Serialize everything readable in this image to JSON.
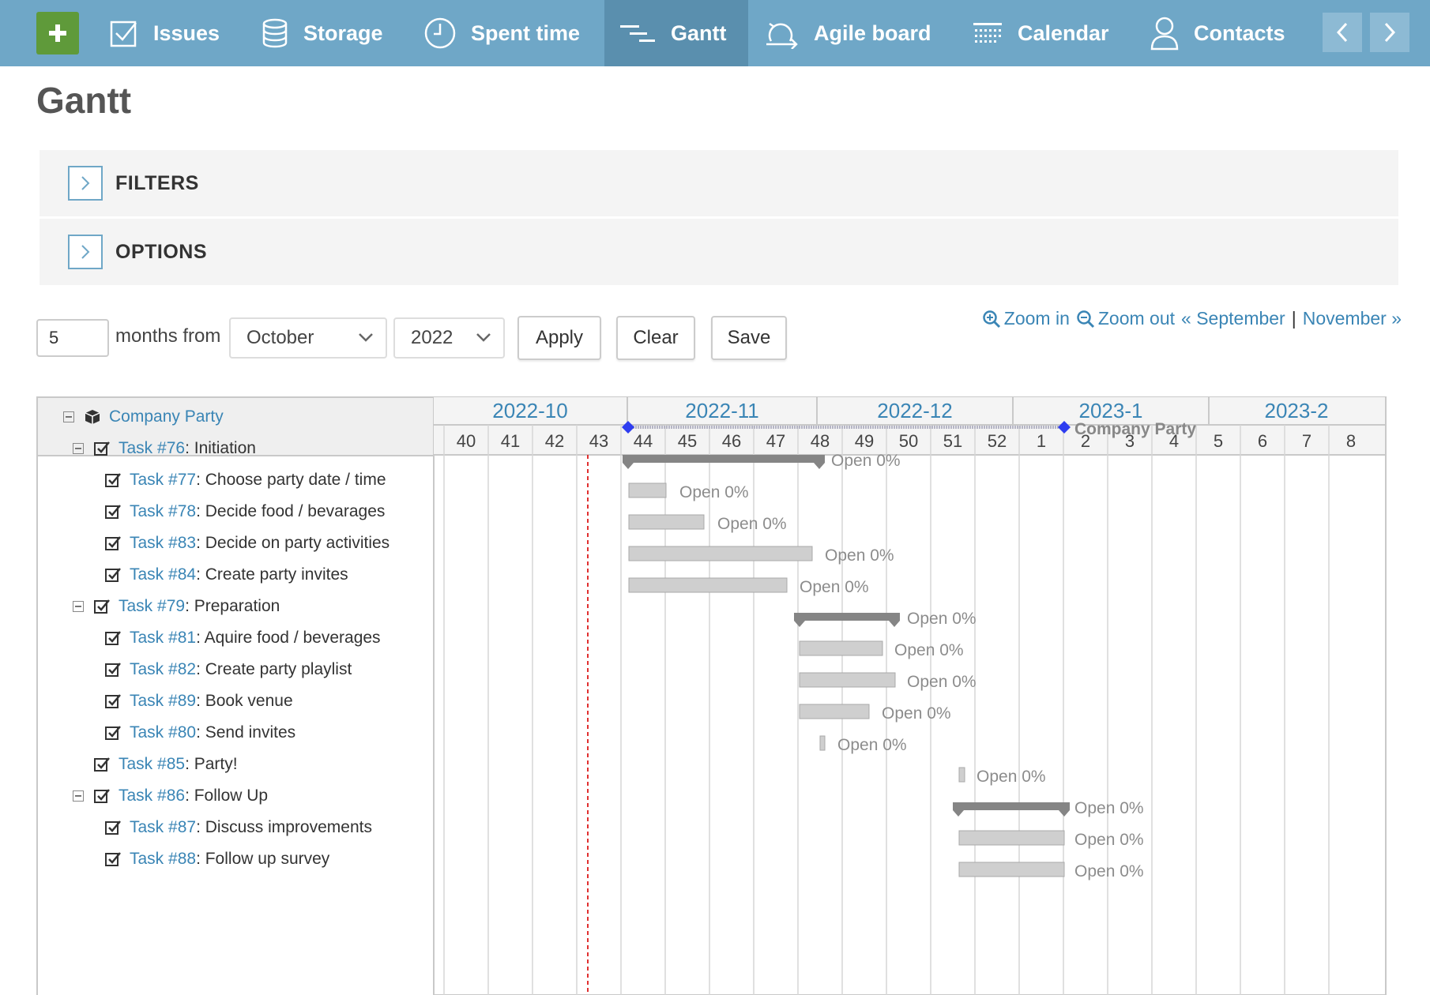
{
  "nav": {
    "items": [
      {
        "label": "Issues",
        "icon": "checkbox-icon"
      },
      {
        "label": "Storage",
        "icon": "database-icon"
      },
      {
        "label": "Spent time",
        "icon": "clock-icon"
      },
      {
        "label": "Gantt",
        "icon": "gantt-icon",
        "active": true
      },
      {
        "label": "Agile board",
        "icon": "agile-icon"
      },
      {
        "label": "Calendar",
        "icon": "calendar-icon"
      },
      {
        "label": "Contacts",
        "icon": "person-icon"
      }
    ]
  },
  "page": {
    "title": "Gantt"
  },
  "panels": {
    "filters": "FILTERS",
    "options": "OPTIONS"
  },
  "controls": {
    "months_value": "5",
    "months_label": "months from",
    "month_select": "October",
    "year_select": "2022",
    "apply": "Apply",
    "clear": "Clear",
    "save": "Save"
  },
  "zoom": {
    "zoom_in": "Zoom in",
    "zoom_out": "Zoom out",
    "prev": "« September",
    "sep": "|",
    "next": "November »"
  },
  "gantt": {
    "months": [
      "2022-10",
      "2022-11",
      "2022-12",
      "2023-1",
      "2023-2"
    ],
    "weeks": [
      "40",
      "41",
      "42",
      "43",
      "44",
      "45",
      "46",
      "47",
      "48",
      "49",
      "50",
      "51",
      "52",
      "1",
      "2",
      "3",
      "4",
      "5",
      "6",
      "7",
      "8"
    ],
    "rows": [
      {
        "level": 0,
        "toggle": true,
        "icon": "package",
        "link": "Company Party",
        "title": "",
        "kind": "project",
        "status": "Company Party"
      },
      {
        "level": 1,
        "toggle": true,
        "icon": "check",
        "link": "Task #76",
        "title": ": Initiation",
        "kind": "parent",
        "status": "Open 0%"
      },
      {
        "level": 2,
        "toggle": false,
        "icon": "check",
        "link": "Task #77",
        "title": ": Choose party date / time",
        "kind": "task",
        "status": "Open 0%"
      },
      {
        "level": 2,
        "toggle": false,
        "icon": "check",
        "link": "Task #78",
        "title": ": Decide food / bevarages",
        "kind": "task",
        "status": "Open 0%"
      },
      {
        "level": 2,
        "toggle": false,
        "icon": "check",
        "link": "Task #83",
        "title": ": Decide on party activities",
        "kind": "task",
        "status": "Open 0%"
      },
      {
        "level": 2,
        "toggle": false,
        "icon": "check",
        "link": "Task #84",
        "title": ": Create party invites",
        "kind": "task",
        "status": "Open 0%"
      },
      {
        "level": 1,
        "toggle": true,
        "icon": "check",
        "link": "Task #79",
        "title": ": Preparation",
        "kind": "parent",
        "status": "Open 0%"
      },
      {
        "level": 2,
        "toggle": false,
        "icon": "check",
        "link": "Task #81",
        "title": ": Aquire food / beverages",
        "kind": "task",
        "status": "Open 0%"
      },
      {
        "level": 2,
        "toggle": false,
        "icon": "check",
        "link": "Task #82",
        "title": ": Create party playlist",
        "kind": "task",
        "status": "Open 0%"
      },
      {
        "level": 2,
        "toggle": false,
        "icon": "check",
        "link": "Task #89",
        "title": ": Book venue",
        "kind": "task",
        "status": "Open 0%"
      },
      {
        "level": 2,
        "toggle": false,
        "icon": "check",
        "link": "Task #80",
        "title": ": Send invites",
        "kind": "task",
        "status": "Open 0%"
      },
      {
        "level": 1,
        "toggle": false,
        "icon": "check",
        "link": "Task #85",
        "title": ": Party!",
        "kind": "task",
        "status": "Open 0%"
      },
      {
        "level": 1,
        "toggle": true,
        "icon": "check",
        "link": "Task #86",
        "title": ": Follow Up",
        "kind": "parent",
        "status": "Open 0%"
      },
      {
        "level": 2,
        "toggle": false,
        "icon": "check",
        "link": "Task #87",
        "title": ": Discuss improvements",
        "kind": "task",
        "status": "Open 0%"
      },
      {
        "level": 2,
        "toggle": false,
        "icon": "check",
        "link": "Task #88",
        "title": ": Follow up survey",
        "kind": "task",
        "status": "Open 0%"
      }
    ]
  },
  "colors": {
    "nav_bg": "#6fa7c7",
    "nav_active": "#5a8fae",
    "link": "#3a85b5",
    "add_btn": "#5f9a3a",
    "today_line": "#e03030"
  }
}
